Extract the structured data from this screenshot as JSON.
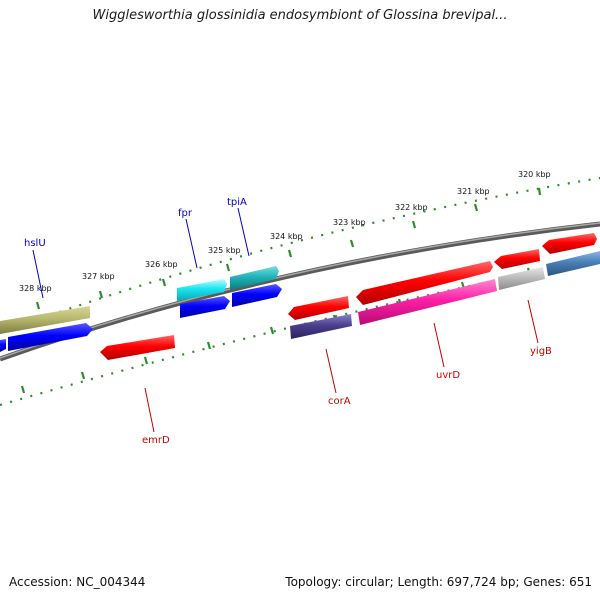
{
  "title": "Wigglesworthia glossinidia endosymbiont of Glossina brevipal...",
  "footer": {
    "accession": "Accession: NC_004344",
    "summary": "Topology: circular; Length: 697,724 bp; Genes: 651"
  },
  "ticks": [
    "320 kbp",
    "321 kbp",
    "322 kbp",
    "323 kbp",
    "324 kbp",
    "325 kbp",
    "326 kbp",
    "327 kbp",
    "328 kbp"
  ],
  "labels": {
    "forward": [
      "hslU",
      "fpr",
      "tpiA"
    ],
    "reverse": [
      "emrD",
      "corA",
      "uvrD",
      "yigB"
    ]
  },
  "colors": {
    "forward_label": "#0000cc",
    "reverse_label": "#cc0000",
    "backbone": "#808080",
    "tick": "#2e8b2e"
  }
}
